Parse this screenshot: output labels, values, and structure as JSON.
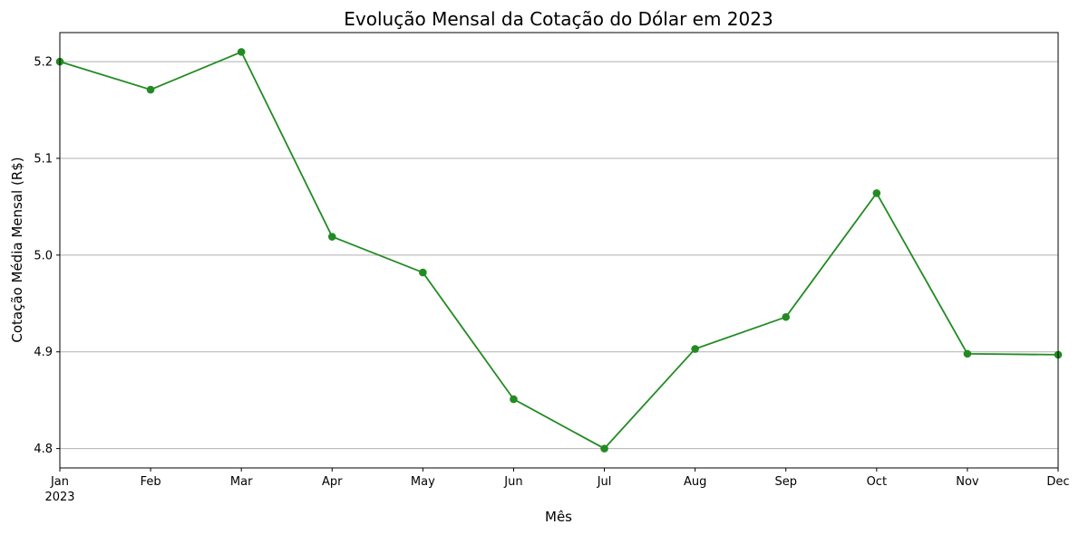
{
  "chart_data": {
    "type": "line",
    "title": "Evolução Mensal da Cotação do Dólar em 2023",
    "xlabel": "Mês",
    "ylabel": "Cotação Média Mensal (R$)",
    "categories": [
      "Jan",
      "Feb",
      "Mar",
      "Apr",
      "May",
      "Jun",
      "Jul",
      "Aug",
      "Sep",
      "Oct",
      "Nov",
      "Dec"
    ],
    "year_label": "2023",
    "values": [
      5.2,
      5.171,
      5.21,
      5.019,
      4.982,
      4.851,
      4.8,
      4.903,
      4.936,
      5.064,
      4.898,
      4.897
    ],
    "ylim": [
      4.78,
      5.23
    ],
    "yticks": [
      "4.8",
      "4.9",
      "5.0",
      "5.1",
      "5.2"
    ],
    "grid": "horizontal",
    "line_color": "#228b22",
    "grid_color": "#b0b0b0"
  }
}
